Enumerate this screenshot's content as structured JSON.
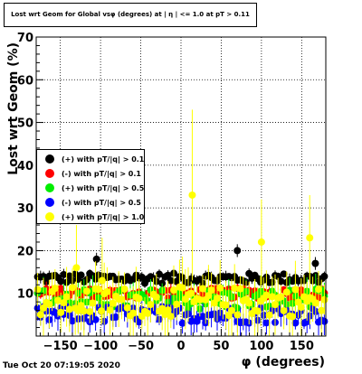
{
  "chart_data": {
    "type": "scatter",
    "title": "Lost wrt Geom for Global vsφ (degrees) at | η | <= 1.0 at pT > 0.11",
    "xlabel": "φ (degrees)",
    "ylabel": "Lost wrt Geom (%)",
    "xlim": [
      -180,
      180
    ],
    "ylim": [
      0,
      70
    ],
    "x_ticks": [
      -150,
      -100,
      -50,
      0,
      50,
      100,
      150
    ],
    "x_tick_labels": [
      "−150",
      "−100",
      "−50",
      "0",
      "50",
      "100",
      "150"
    ],
    "y_ticks": [
      0,
      10,
      20,
      30,
      40,
      50,
      60,
      70
    ],
    "y_tick_labels": [
      "",
      "10",
      "20",
      "30",
      "40",
      "50",
      "60",
      "70"
    ],
    "grid": true,
    "legend_position": "left-middle",
    "phi_bin_width_deg": 3.6,
    "series": [
      {
        "name": "(+) with pT/|q| > 0.1",
        "color": "#000000",
        "level": 13.5,
        "spread": 1.2,
        "err": 1.0,
        "outliers": [
          {
            "x": -105,
            "y": 18
          },
          {
            "x": 70,
            "y": 20
          },
          {
            "x": 167,
            "y": 17
          }
        ]
      },
      {
        "name": "(-) with pT/|q| > 0.1",
        "color": "#ff0000",
        "level": 10.0,
        "spread": 1.2,
        "err": 1.2,
        "outliers": []
      },
      {
        "name": "(+) with pT/|q| > 0.5",
        "color": "#00ee00",
        "level": 8.5,
        "spread": 2.5,
        "err": 2.5,
        "outliers": []
      },
      {
        "name": "(-) with pT/|q| > 0.5",
        "color": "#0000ff",
        "level": 5.0,
        "spread": 2.0,
        "err": 2.5,
        "outliers": []
      },
      {
        "name": "(+) with pT/|q| > 1.0",
        "color": "#ffff00",
        "level": 8.0,
        "spread": 3.5,
        "err": 5.0,
        "outliers": [
          {
            "x": 14,
            "y": 33
          },
          {
            "x": 100,
            "y": 22
          },
          {
            "x": 160,
            "y": 23
          },
          {
            "x": -130,
            "y": 16
          },
          {
            "x": -98,
            "y": 13
          }
        ]
      }
    ]
  },
  "timestamp": "Tue Oct 20 07:19:05 2020"
}
